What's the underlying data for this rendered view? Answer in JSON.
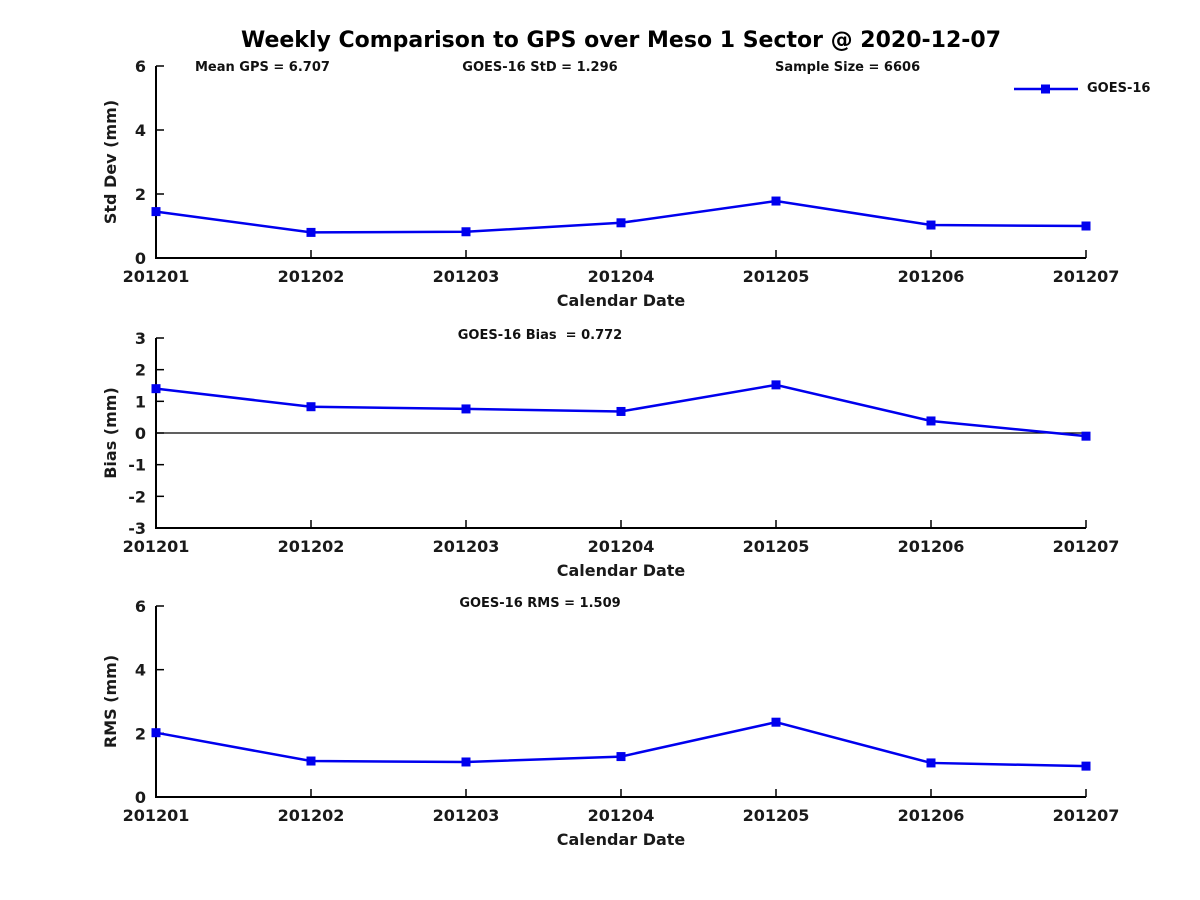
{
  "title": "Weekly Comparison to GPS over Meso 1 Sector @ 2020-12-07",
  "accent_color": "#0000ee",
  "chart_data": [
    {
      "type": "line",
      "categories": [
        "201201",
        "201202",
        "201203",
        "201204",
        "201205",
        "201206",
        "201207"
      ],
      "series": [
        {
          "name": "GOES-16",
          "color": "#0000ee",
          "marker": "square",
          "values": [
            1.45,
            0.8,
            0.82,
            1.1,
            1.78,
            1.03,
            1.0
          ]
        }
      ],
      "xlabel": "Calendar Date",
      "ylabel": "Std Dev (mm)",
      "ylim": [
        0,
        6
      ],
      "yticks": [
        0,
        2,
        4,
        6
      ],
      "zero_line": false,
      "grid": false,
      "legend_position": "top-right",
      "annotations": [
        "Mean GPS = 6.707",
        "GOES-16 StD = 1.296",
        "Sample Size = 6606"
      ]
    },
    {
      "type": "line",
      "categories": [
        "201201",
        "201202",
        "201203",
        "201204",
        "201205",
        "201206",
        "201207"
      ],
      "series": [
        {
          "name": "GOES-16",
          "color": "#0000ee",
          "marker": "square",
          "values": [
            1.4,
            0.83,
            0.76,
            0.68,
            1.52,
            0.38,
            -0.1
          ]
        }
      ],
      "xlabel": "Calendar Date",
      "ylabel": "Bias (mm)",
      "ylim": [
        -3,
        3
      ],
      "yticks": [
        -3,
        -2,
        -1,
        0,
        1,
        2,
        3
      ],
      "zero_line": true,
      "grid": false,
      "annotations": [
        "GOES-16 Bias  = 0.772"
      ]
    },
    {
      "type": "line",
      "categories": [
        "201201",
        "201202",
        "201203",
        "201204",
        "201205",
        "201206",
        "201207"
      ],
      "series": [
        {
          "name": "GOES-16",
          "color": "#0000ee",
          "marker": "square",
          "values": [
            2.02,
            1.13,
            1.1,
            1.27,
            2.35,
            1.07,
            0.97
          ]
        }
      ],
      "xlabel": "Calendar Date",
      "ylabel": "RMS (mm)",
      "ylim": [
        0,
        6
      ],
      "yticks": [
        0,
        2,
        4,
        6
      ],
      "zero_line": false,
      "grid": false,
      "annotations": [
        "GOES-16 RMS = 1.509"
      ]
    }
  ]
}
